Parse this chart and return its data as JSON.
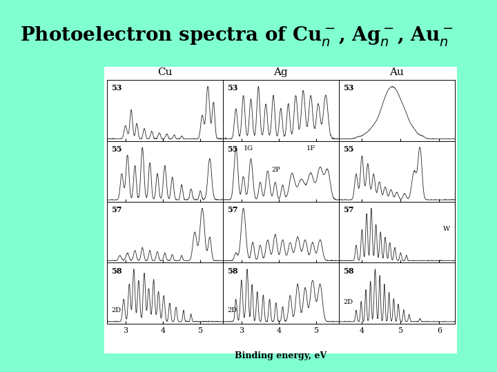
{
  "bg_color": "#80FFD0",
  "panel_bg": "white",
  "fig_width": 7.2,
  "fig_height": 5.4,
  "columns": [
    "Cu",
    "Ag",
    "Au"
  ],
  "rows": [
    "53",
    "55",
    "57",
    "58"
  ],
  "xlabel": "Binding energy, eV",
  "cu_xrange": [
    2.5,
    5.6
  ],
  "ag_xrange": [
    2.5,
    5.6
  ],
  "au_xrange": [
    3.4,
    6.4
  ],
  "cu_xticks": [
    3,
    4,
    5
  ],
  "ag_xticks": [
    3,
    4,
    5
  ],
  "au_xticks": [
    4,
    5,
    6
  ],
  "line_color": "#222222",
  "line_width": 0.6,
  "title": "Photoelectron spectra of Cu",
  "title_fontsize": 20,
  "col_header_fontsize": 11,
  "panel_label_fontsize": 8,
  "annot_fontsize": 7,
  "tick_fontsize": 8
}
